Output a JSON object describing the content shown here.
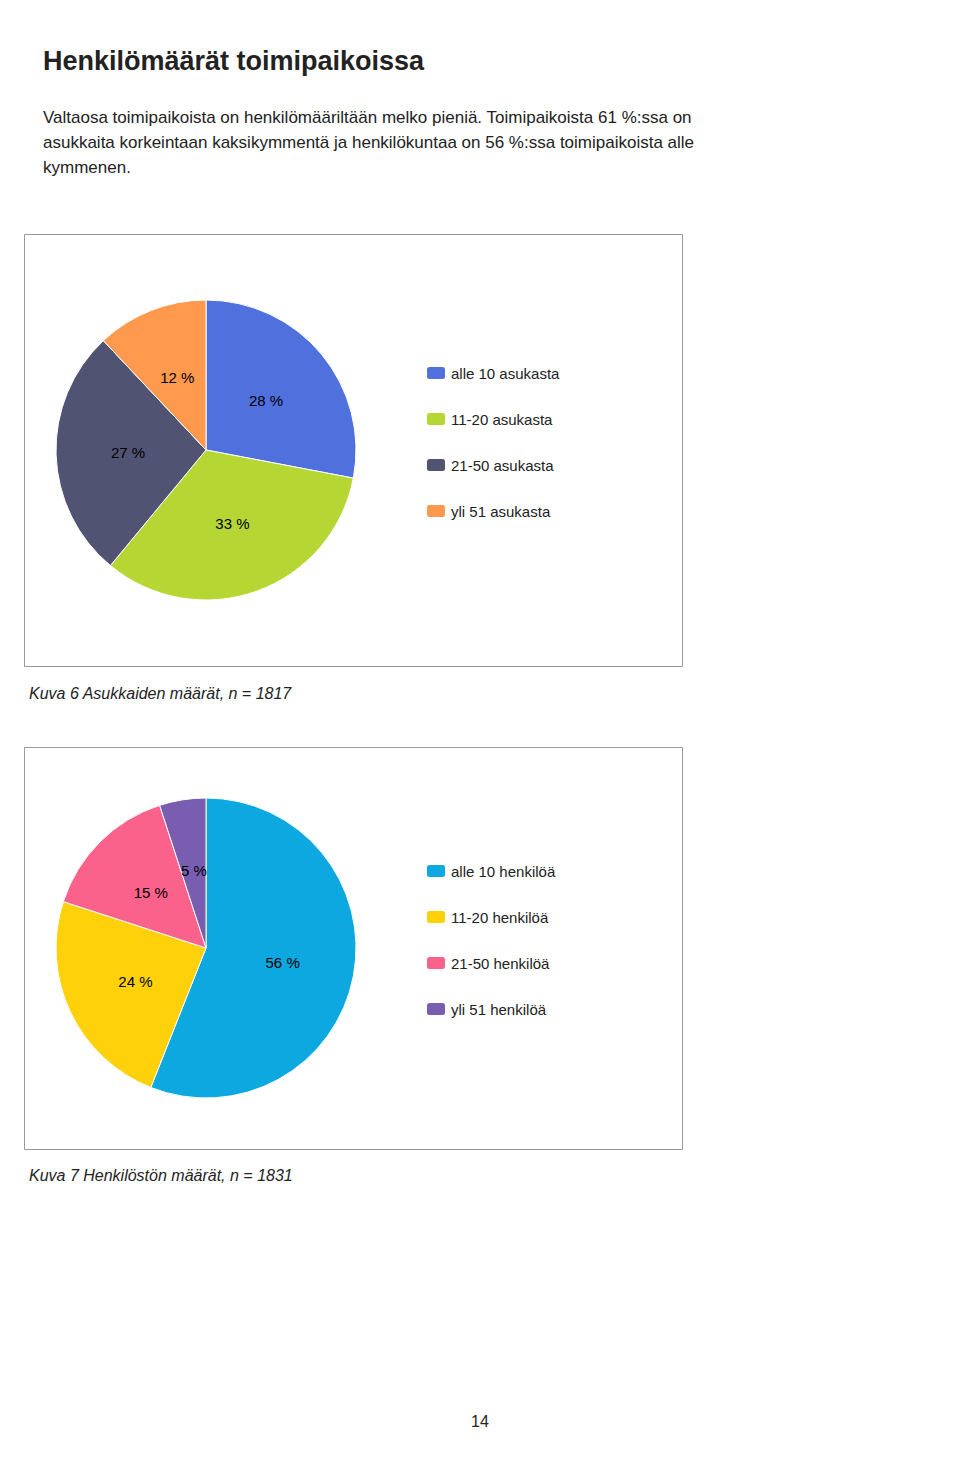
{
  "title": "Henkilömäärät toimipaikoissa",
  "subtitle": [
    "Valtaosa toimipaikoista on henkilömääriltään melko pieniä. Toimipaikoista 61 %:ssa on",
    "asukkaita korkeintaan kaksikymmentä ja henkilökuntaa on 56 %:ssa toimipaikoista alle",
    "kymmenen."
  ],
  "annotations": [
    "14"
  ],
  "chart_data": [
    {
      "type": "pie",
      "title": "Kuva 6 Asukkaiden määrät, n = 1817",
      "categories": [
        "alle 10 asukasta",
        "11-20 asukasta",
        "21-50 asukasta",
        "yli 51 asukasta"
      ],
      "values": [
        28,
        33,
        27,
        12
      ],
      "value_labels": [
        "28 %",
        "33 %",
        "27 %",
        "12 %"
      ],
      "data_labels": true,
      "legend": "right"
    },
    {
      "type": "pie",
      "title": "Kuva 7 Henkilöstön määrät, n = 1831",
      "categories": [
        "alle 10 henkilöä",
        "11-20 henkilöä",
        "21-50 henkilöä",
        "yli 51 henkilöä"
      ],
      "values": [
        56,
        24,
        15,
        5
      ],
      "value_labels": [
        "56 %",
        "24 %",
        "15 %",
        "5 %"
      ],
      "data_labels": true,
      "legend": "right"
    }
  ]
}
